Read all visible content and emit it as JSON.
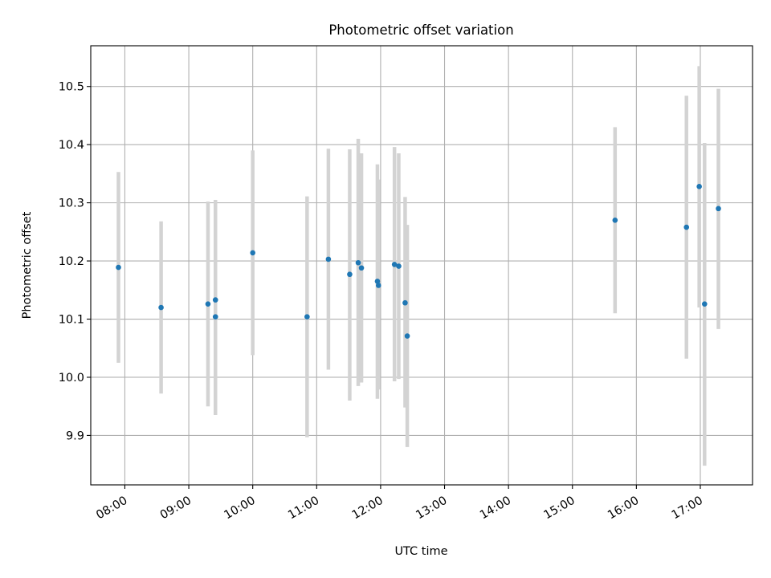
{
  "chart_data": {
    "type": "scatter",
    "title": "Photometric offset variation",
    "xlabel": "UTC time",
    "ylabel": "Photometric offset",
    "x_ticks": [
      "08:00",
      "09:00",
      "10:00",
      "11:00",
      "12:00",
      "13:00",
      "14:00",
      "15:00",
      "16:00",
      "17:00"
    ],
    "y_ticks": [
      "9.9",
      "10.0",
      "10.1",
      "10.2",
      "10.3",
      "10.4",
      "10.5"
    ],
    "xlim": [
      "07:28",
      "17:49"
    ],
    "ylim": [
      9.815,
      10.57
    ],
    "grid": true,
    "colors": {
      "marker": "#1f77b4",
      "errorbar": "#d3d3d3",
      "grid": "#b0b0b0"
    },
    "points": [
      {
        "x": "07:54",
        "y": 10.189,
        "ylow": 10.025,
        "yhigh": 10.353
      },
      {
        "x": "08:34",
        "y": 10.12,
        "ylow": 9.972,
        "yhigh": 10.268
      },
      {
        "x": "09:18",
        "y": 10.126,
        "ylow": 9.95,
        "yhigh": 10.302
      },
      {
        "x": "09:25",
        "y": 10.133,
        "ylow": 9.961,
        "yhigh": 10.305
      },
      {
        "x": "09:25",
        "y": 10.104,
        "ylow": 9.935,
        "yhigh": 10.273
      },
      {
        "x": "10:00",
        "y": 10.214,
        "ylow": 10.038,
        "yhigh": 10.39
      },
      {
        "x": "10:51",
        "y": 10.104,
        "ylow": 9.897,
        "yhigh": 10.311
      },
      {
        "x": "11:11",
        "y": 10.203,
        "ylow": 10.013,
        "yhigh": 10.393
      },
      {
        "x": "11:31",
        "y": 10.177,
        "ylow": 9.96,
        "yhigh": 10.392
      },
      {
        "x": "11:39",
        "y": 10.197,
        "ylow": 9.985,
        "yhigh": 10.41
      },
      {
        "x": "11:42",
        "y": 10.188,
        "ylow": 9.991,
        "yhigh": 10.385
      },
      {
        "x": "11:57",
        "y": 10.165,
        "ylow": 9.963,
        "yhigh": 10.366
      },
      {
        "x": "11:58",
        "y": 10.158,
        "ylow": 9.979,
        "yhigh": 10.34
      },
      {
        "x": "12:13",
        "y": 10.194,
        "ylow": 9.993,
        "yhigh": 10.396
      },
      {
        "x": "12:17",
        "y": 10.191,
        "ylow": 9.997,
        "yhigh": 10.385
      },
      {
        "x": "12:23",
        "y": 10.128,
        "ylow": 9.948,
        "yhigh": 10.31
      },
      {
        "x": "12:25",
        "y": 10.071,
        "ylow": 9.88,
        "yhigh": 10.262
      },
      {
        "x": "15:40",
        "y": 10.27,
        "ylow": 10.11,
        "yhigh": 10.43
      },
      {
        "x": "16:47",
        "y": 10.258,
        "ylow": 10.032,
        "yhigh": 10.484
      },
      {
        "x": "16:59",
        "y": 10.328,
        "ylow": 10.12,
        "yhigh": 10.535
      },
      {
        "x": "17:04",
        "y": 10.126,
        "ylow": 9.848,
        "yhigh": 10.403
      },
      {
        "x": "17:17",
        "y": 10.29,
        "ylow": 10.083,
        "yhigh": 10.496
      }
    ]
  }
}
